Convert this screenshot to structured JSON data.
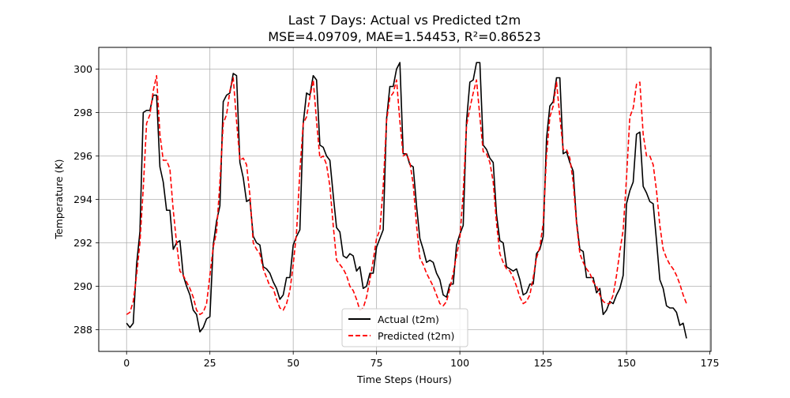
{
  "chart_data": {
    "type": "line",
    "title": "Last 7 Days: Actual vs Predicted t2m",
    "subtitle": "MSE=4.09709, MAE=1.54453, R²=0.86523",
    "xlabel": "Time Steps (Hours)",
    "ylabel": "Temperature (K)",
    "xlim": [
      -8.35,
      175.35
    ],
    "ylim": [
      287.0,
      301.0
    ],
    "xticks": [
      0,
      25,
      50,
      75,
      100,
      125,
      150,
      175
    ],
    "yticks": [
      288,
      290,
      292,
      294,
      296,
      298,
      300
    ],
    "xtick_labels": [
      "0",
      "25",
      "50",
      "75",
      "100",
      "125",
      "150",
      "175"
    ],
    "ytick_labels": [
      "288",
      "290",
      "292",
      "294",
      "296",
      "298",
      "300"
    ],
    "grid": true,
    "legend_position": "bottom-center",
    "series": [
      {
        "name": "Actual (t2m)",
        "color": "#000000",
        "style": "solid",
        "values": [
          288.3,
          288.1,
          288.3,
          291.0,
          292.5,
          298.0,
          298.1,
          298.1,
          298.8,
          298.8,
          295.5,
          294.8,
          293.5,
          293.5,
          291.7,
          292.0,
          292.1,
          290.5,
          290.0,
          289.6,
          288.9,
          288.7,
          287.9,
          288.1,
          288.5,
          288.6,
          291.9,
          293.0,
          293.7,
          298.5,
          298.8,
          298.9,
          299.8,
          299.7,
          295.7,
          295.0,
          293.9,
          294.0,
          292.3,
          292.0,
          291.9,
          290.9,
          290.8,
          290.6,
          290.2,
          289.9,
          289.4,
          289.6,
          290.4,
          290.4,
          291.9,
          292.3,
          292.6,
          297.5,
          298.9,
          298.8,
          299.7,
          299.5,
          296.5,
          296.4,
          296.0,
          295.8,
          294.2,
          292.7,
          292.5,
          291.4,
          291.3,
          291.5,
          291.4,
          290.7,
          290.9,
          289.9,
          290.0,
          290.6,
          290.6,
          291.8,
          292.2,
          292.6,
          297.7,
          299.2,
          299.2,
          300.0,
          300.3,
          296.1,
          296.1,
          295.6,
          295.5,
          293.7,
          292.2,
          291.7,
          291.1,
          291.2,
          291.1,
          290.6,
          290.3,
          289.6,
          289.5,
          290.1,
          290.1,
          291.9,
          292.4,
          292.8,
          297.6,
          299.4,
          299.5,
          300.3,
          300.3,
          296.5,
          296.3,
          295.9,
          295.7,
          293.3,
          292.1,
          292.0,
          290.9,
          290.8,
          290.7,
          290.8,
          290.3,
          289.6,
          289.7,
          290.1,
          290.1,
          291.5,
          291.7,
          292.3,
          296.8,
          298.3,
          298.5,
          299.6,
          299.6,
          296.1,
          296.2,
          295.7,
          295.3,
          293.0,
          291.7,
          291.6,
          290.4,
          290.4,
          290.4,
          289.7,
          289.9,
          288.7,
          288.9,
          289.3,
          289.2,
          289.6,
          289.9,
          290.5,
          293.8,
          294.4,
          294.8,
          297.0,
          297.1,
          294.6,
          294.3,
          293.9,
          293.8,
          292.1,
          290.3,
          289.9,
          289.1,
          289.0,
          289.0,
          288.8,
          288.2,
          288.3,
          287.6
        ]
      },
      {
        "name": "Predicted (t2m)",
        "color": "#ff0000",
        "style": "dashed",
        "values": [
          288.7,
          288.8,
          289.3,
          290.5,
          292.0,
          294.5,
          297.5,
          297.9,
          299.0,
          299.7,
          297.0,
          295.8,
          295.8,
          295.4,
          293.5,
          292.0,
          290.7,
          290.5,
          290.2,
          289.9,
          289.5,
          288.9,
          288.7,
          288.8,
          289.2,
          290.5,
          291.8,
          292.5,
          294.8,
          297.5,
          297.9,
          299.0,
          299.6,
          297.6,
          295.8,
          295.9,
          295.6,
          294.2,
          292.0,
          291.7,
          291.5,
          290.8,
          290.4,
          290.0,
          289.9,
          289.4,
          289.0,
          288.9,
          289.2,
          289.8,
          291.0,
          292.5,
          295.3,
          297.5,
          297.8,
          298.7,
          299.5,
          297.6,
          295.9,
          296.0,
          295.6,
          294.6,
          292.8,
          291.2,
          291.0,
          290.8,
          290.5,
          290.0,
          289.8,
          289.4,
          288.9,
          289.0,
          289.5,
          290.3,
          291.2,
          292.2,
          292.6,
          294.6,
          297.6,
          298.7,
          298.9,
          299.5,
          297.6,
          296.0,
          296.1,
          295.7,
          294.7,
          292.8,
          291.3,
          291.0,
          290.6,
          290.3,
          290.0,
          289.6,
          289.2,
          289.1,
          289.3,
          289.9,
          290.6,
          291.4,
          292.2,
          294.3,
          297.4,
          298.2,
          298.9,
          299.5,
          297.8,
          296.2,
          296.1,
          295.7,
          294.8,
          292.9,
          291.5,
          291.1,
          290.8,
          290.7,
          290.4,
          290.0,
          289.5,
          289.2,
          289.3,
          289.6,
          290.4,
          291.3,
          291.8,
          292.9,
          296.0,
          297.8,
          298.3,
          299.4,
          297.8,
          296.3,
          296.3,
          295.9,
          294.8,
          292.9,
          291.5,
          291.1,
          290.8,
          290.6,
          290.2,
          290.0,
          289.6,
          289.3,
          289.2,
          289.2,
          289.6,
          290.5,
          291.6,
          292.6,
          295.0,
          297.8,
          298.2,
          299.3,
          299.4,
          297.0,
          296.0,
          296.0,
          295.6,
          294.4,
          292.8,
          291.7,
          291.3,
          291.0,
          290.8,
          290.5,
          290.1,
          289.6,
          289.2
        ]
      }
    ]
  }
}
